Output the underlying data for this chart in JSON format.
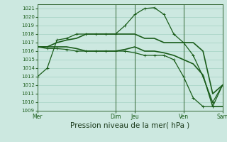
{
  "bg_color": "#cce8e0",
  "grid_color": "#99ccbb",
  "line_color": "#1a5c1a",
  "marker_color": "#1a5c1a",
  "ylim": [
    1009,
    1021.5
  ],
  "yticks": [
    1009,
    1010,
    1011,
    1012,
    1013,
    1014,
    1015,
    1016,
    1017,
    1018,
    1019,
    1020,
    1021
  ],
  "xlabel": "Pression niveau de la mer( hPa )",
  "xlabel_fontsize": 7.5,
  "day_labels": [
    "Mer",
    "Dim",
    "Jeu",
    "Ven",
    "Sam"
  ],
  "day_positions": [
    0,
    8,
    10,
    15,
    19
  ],
  "series": [
    {
      "x": [
        0,
        1,
        2,
        3,
        4,
        5,
        6,
        7,
        8,
        9,
        10,
        11,
        12,
        13,
        14,
        15,
        16,
        17,
        18,
        19
      ],
      "y": [
        1013,
        1014,
        1017.3,
        1017.5,
        1018,
        1018,
        1018,
        1018,
        1018,
        1019,
        1020.3,
        1021,
        1021.1,
        1020.3,
        1018,
        1017,
        1015.5,
        1013,
        1010,
        1012
      ],
      "marker": true,
      "lw": 0.9
    },
    {
      "x": [
        0,
        1,
        2,
        3,
        4,
        5,
        6,
        7,
        8,
        9,
        10,
        11,
        12,
        13,
        14,
        15,
        16,
        17,
        18,
        19
      ],
      "y": [
        1016.5,
        1016.5,
        1017,
        1017.3,
        1017.5,
        1018,
        1018,
        1018,
        1018,
        1018,
        1018,
        1017.5,
        1017.5,
        1017,
        1017,
        1017,
        1017,
        1016,
        1011,
        1012
      ],
      "marker": false,
      "lw": 1.2
    },
    {
      "x": [
        0,
        1,
        2,
        3,
        4,
        5,
        6,
        7,
        8,
        9,
        10,
        11,
        12,
        13,
        14,
        15,
        16,
        17,
        18,
        19
      ],
      "y": [
        1016.5,
        1016.5,
        1016.5,
        1016.5,
        1016.3,
        1016,
        1016,
        1016,
        1016,
        1016.2,
        1016.5,
        1016,
        1016,
        1015.8,
        1015.5,
        1015,
        1014.5,
        1013.2,
        1009.5,
        1009.5
      ],
      "marker": false,
      "lw": 1.2
    },
    {
      "x": [
        0,
        1,
        2,
        3,
        4,
        5,
        6,
        7,
        8,
        9,
        10,
        11,
        12,
        13,
        14,
        15,
        16,
        17,
        18,
        19
      ],
      "y": [
        1016.5,
        1016.3,
        1016.3,
        1016.2,
        1016,
        1016,
        1016,
        1016,
        1016,
        1016,
        1015.8,
        1015.5,
        1015.5,
        1015.5,
        1015,
        1013,
        1010.5,
        1009.5,
        1009.5,
        1012
      ],
      "marker": true,
      "lw": 0.9
    }
  ]
}
